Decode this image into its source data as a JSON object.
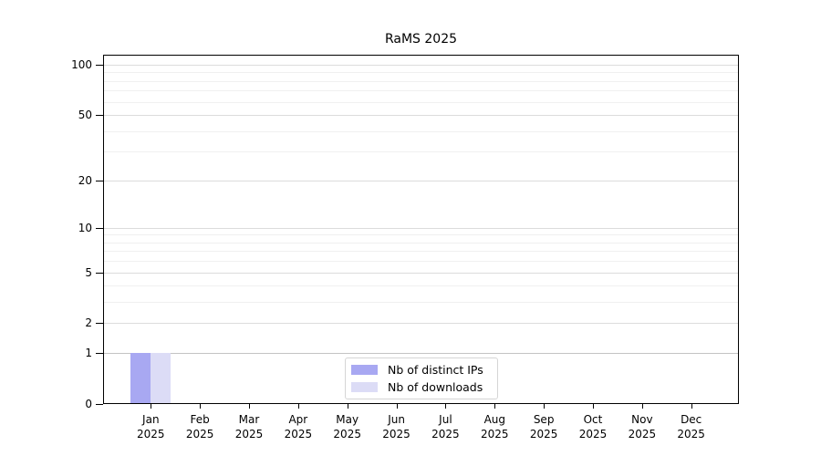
{
  "chart_data": {
    "type": "bar",
    "title": "RaMS 2025",
    "categories": [
      "Jan",
      "Feb",
      "Mar",
      "Apr",
      "May",
      "Jun",
      "Jul",
      "Aug",
      "Sep",
      "Oct",
      "Nov",
      "Dec"
    ],
    "category_year": "2025",
    "series": [
      {
        "name": "Nb of distinct IPs",
        "color": "#a8a8f2",
        "values": [
          1,
          0,
          0,
          0,
          0,
          0,
          0,
          0,
          0,
          0,
          0,
          0
        ]
      },
      {
        "name": "Nb of downloads",
        "color": "#dcdcf6",
        "values": [
          1,
          0,
          0,
          0,
          0,
          0,
          0,
          0,
          0,
          0,
          0,
          0
        ]
      }
    ],
    "xlabel": "",
    "ylabel": "",
    "yscale": "log(value+1)",
    "ylim": [
      0,
      113
    ],
    "y_ticks": [
      0,
      1,
      2,
      5,
      10,
      20,
      50,
      100
    ],
    "y_minor_gridlines": [
      3,
      4,
      6,
      7,
      8,
      9,
      30,
      40,
      60,
      70,
      80,
      90
    ],
    "grid": true,
    "legend_position": "lower center"
  }
}
